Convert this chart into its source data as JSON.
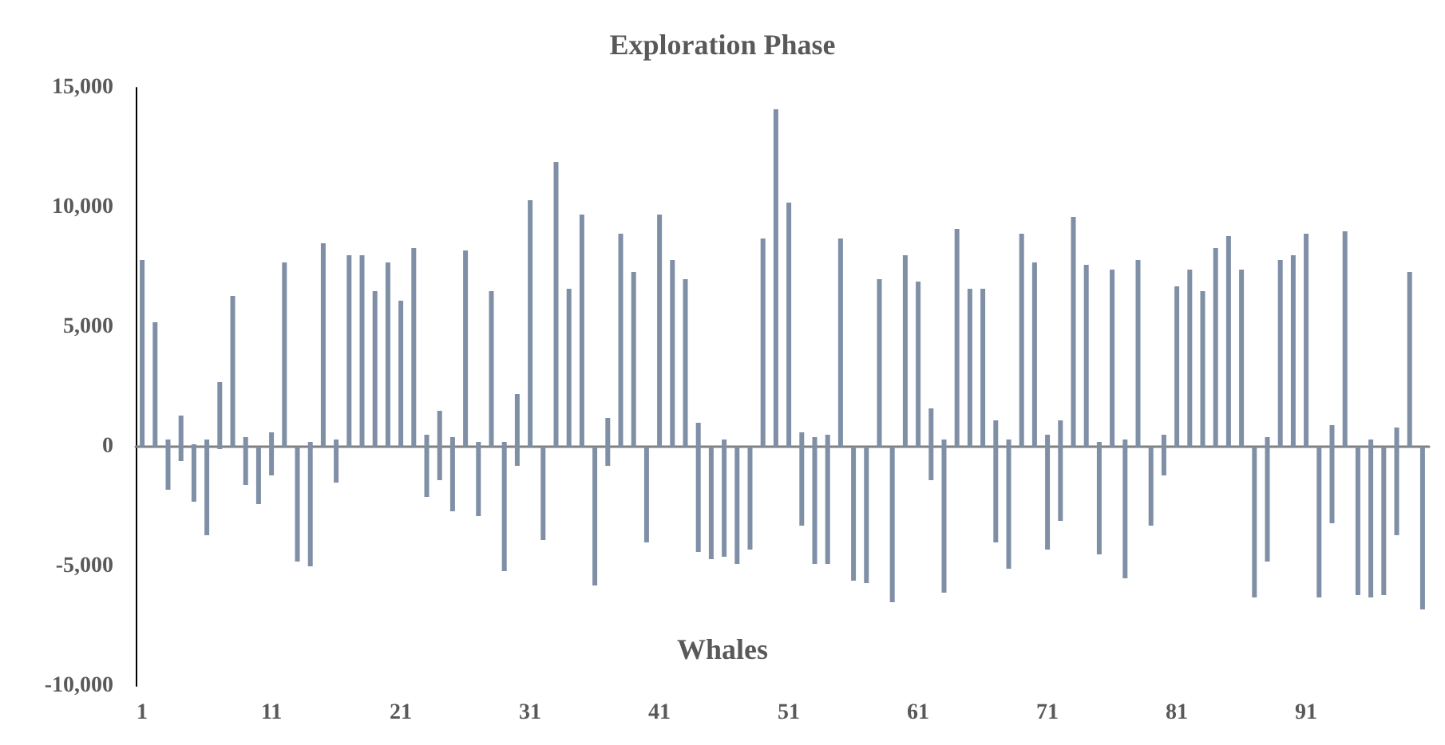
{
  "chart_data": {
    "type": "bar",
    "title": "Exploration Phase",
    "annotations": [
      "Whales"
    ],
    "stacked": true,
    "categories": [
      "1",
      null,
      null,
      null,
      null,
      null,
      null,
      null,
      null,
      null,
      "11",
      null,
      null,
      null,
      null,
      null,
      null,
      null,
      null,
      null,
      "21",
      null,
      null,
      null,
      null,
      null,
      null,
      null,
      null,
      null,
      "31",
      null,
      null,
      null,
      null,
      null,
      null,
      null,
      null,
      null,
      "41",
      null,
      null,
      null,
      null,
      null,
      null,
      null,
      null,
      null,
      "51",
      null,
      null,
      null,
      null,
      null,
      null,
      null,
      null,
      null,
      "61",
      null,
      null,
      null,
      null,
      null,
      null,
      null,
      null,
      null,
      "71",
      null,
      null,
      null,
      null,
      null,
      null,
      null,
      null,
      null,
      "81",
      null,
      null,
      null,
      null,
      null,
      null,
      null,
      null,
      null,
      "91",
      null,
      null,
      null,
      null,
      null,
      null,
      null,
      null,
      null
    ],
    "ylim": [
      -10000,
      15000
    ],
    "yticks": [
      {
        "value": -10000,
        "label": "-10,000"
      },
      {
        "value": -5000,
        "label": "-5,000"
      },
      {
        "value": 0,
        "label": "0"
      },
      {
        "value": 5000,
        "label": "5,000"
      },
      {
        "value": 10000,
        "label": "10,000"
      },
      {
        "value": 15000,
        "label": "15,000"
      }
    ],
    "series": [
      {
        "color": "#7f8fa6",
        "values": [
          7800,
          5200,
          300,
          1300,
          100,
          300,
          2700,
          6300,
          400,
          null,
          600,
          7700,
          null,
          200,
          8500,
          300,
          8000,
          8000,
          6500,
          7700,
          6100,
          8300,
          500,
          1500,
          400,
          8200,
          200,
          6500,
          200,
          2200,
          10300,
          null,
          11900,
          6600,
          9700,
          null,
          1200,
          8900,
          7300,
          null,
          9700,
          7800,
          7000,
          1000,
          null,
          300,
          null,
          null,
          8700,
          14100,
          10200,
          600,
          400,
          500,
          8700,
          null,
          null,
          7000,
          null,
          8000,
          6900,
          1600,
          300,
          9100,
          6600,
          6600,
          1100,
          300,
          8900,
          7700,
          500,
          1100,
          9600,
          7600,
          200,
          7400,
          300,
          7800,
          null,
          500,
          6700,
          7400,
          6500,
          8300,
          8800,
          7400,
          null,
          400,
          7800,
          8000,
          8900,
          null,
          900,
          9000,
          null,
          300,
          null,
          800,
          7300,
          null
        ]
      },
      {
        "color": "#7f8fa6",
        "values": [
          null,
          null,
          -1800,
          -600,
          -2300,
          -3700,
          -100,
          null,
          -1600,
          -2400,
          -1200,
          null,
          -4800,
          -5000,
          null,
          -1500,
          null,
          null,
          null,
          null,
          null,
          null,
          -2100,
          -1400,
          -2700,
          null,
          -2900,
          null,
          -5200,
          -800,
          null,
          -3900,
          null,
          null,
          null,
          -5800,
          -800,
          null,
          null,
          -4000,
          null,
          null,
          null,
          -4400,
          -4700,
          -4600,
          -4900,
          -4300,
          null,
          null,
          null,
          -3300,
          -4900,
          -4900,
          null,
          -5600,
          -5700,
          null,
          -6500,
          null,
          null,
          -1400,
          -6100,
          null,
          null,
          null,
          -4000,
          -5100,
          null,
          null,
          -4300,
          -3100,
          null,
          null,
          -4500,
          null,
          -5500,
          null,
          -3300,
          -1200,
          null,
          null,
          null,
          null,
          null,
          null,
          -6300,
          -4800,
          null,
          null,
          null,
          -6300,
          -3200,
          null,
          -6200,
          -6300,
          -6200,
          -3700,
          null,
          -6800
        ]
      }
    ]
  }
}
